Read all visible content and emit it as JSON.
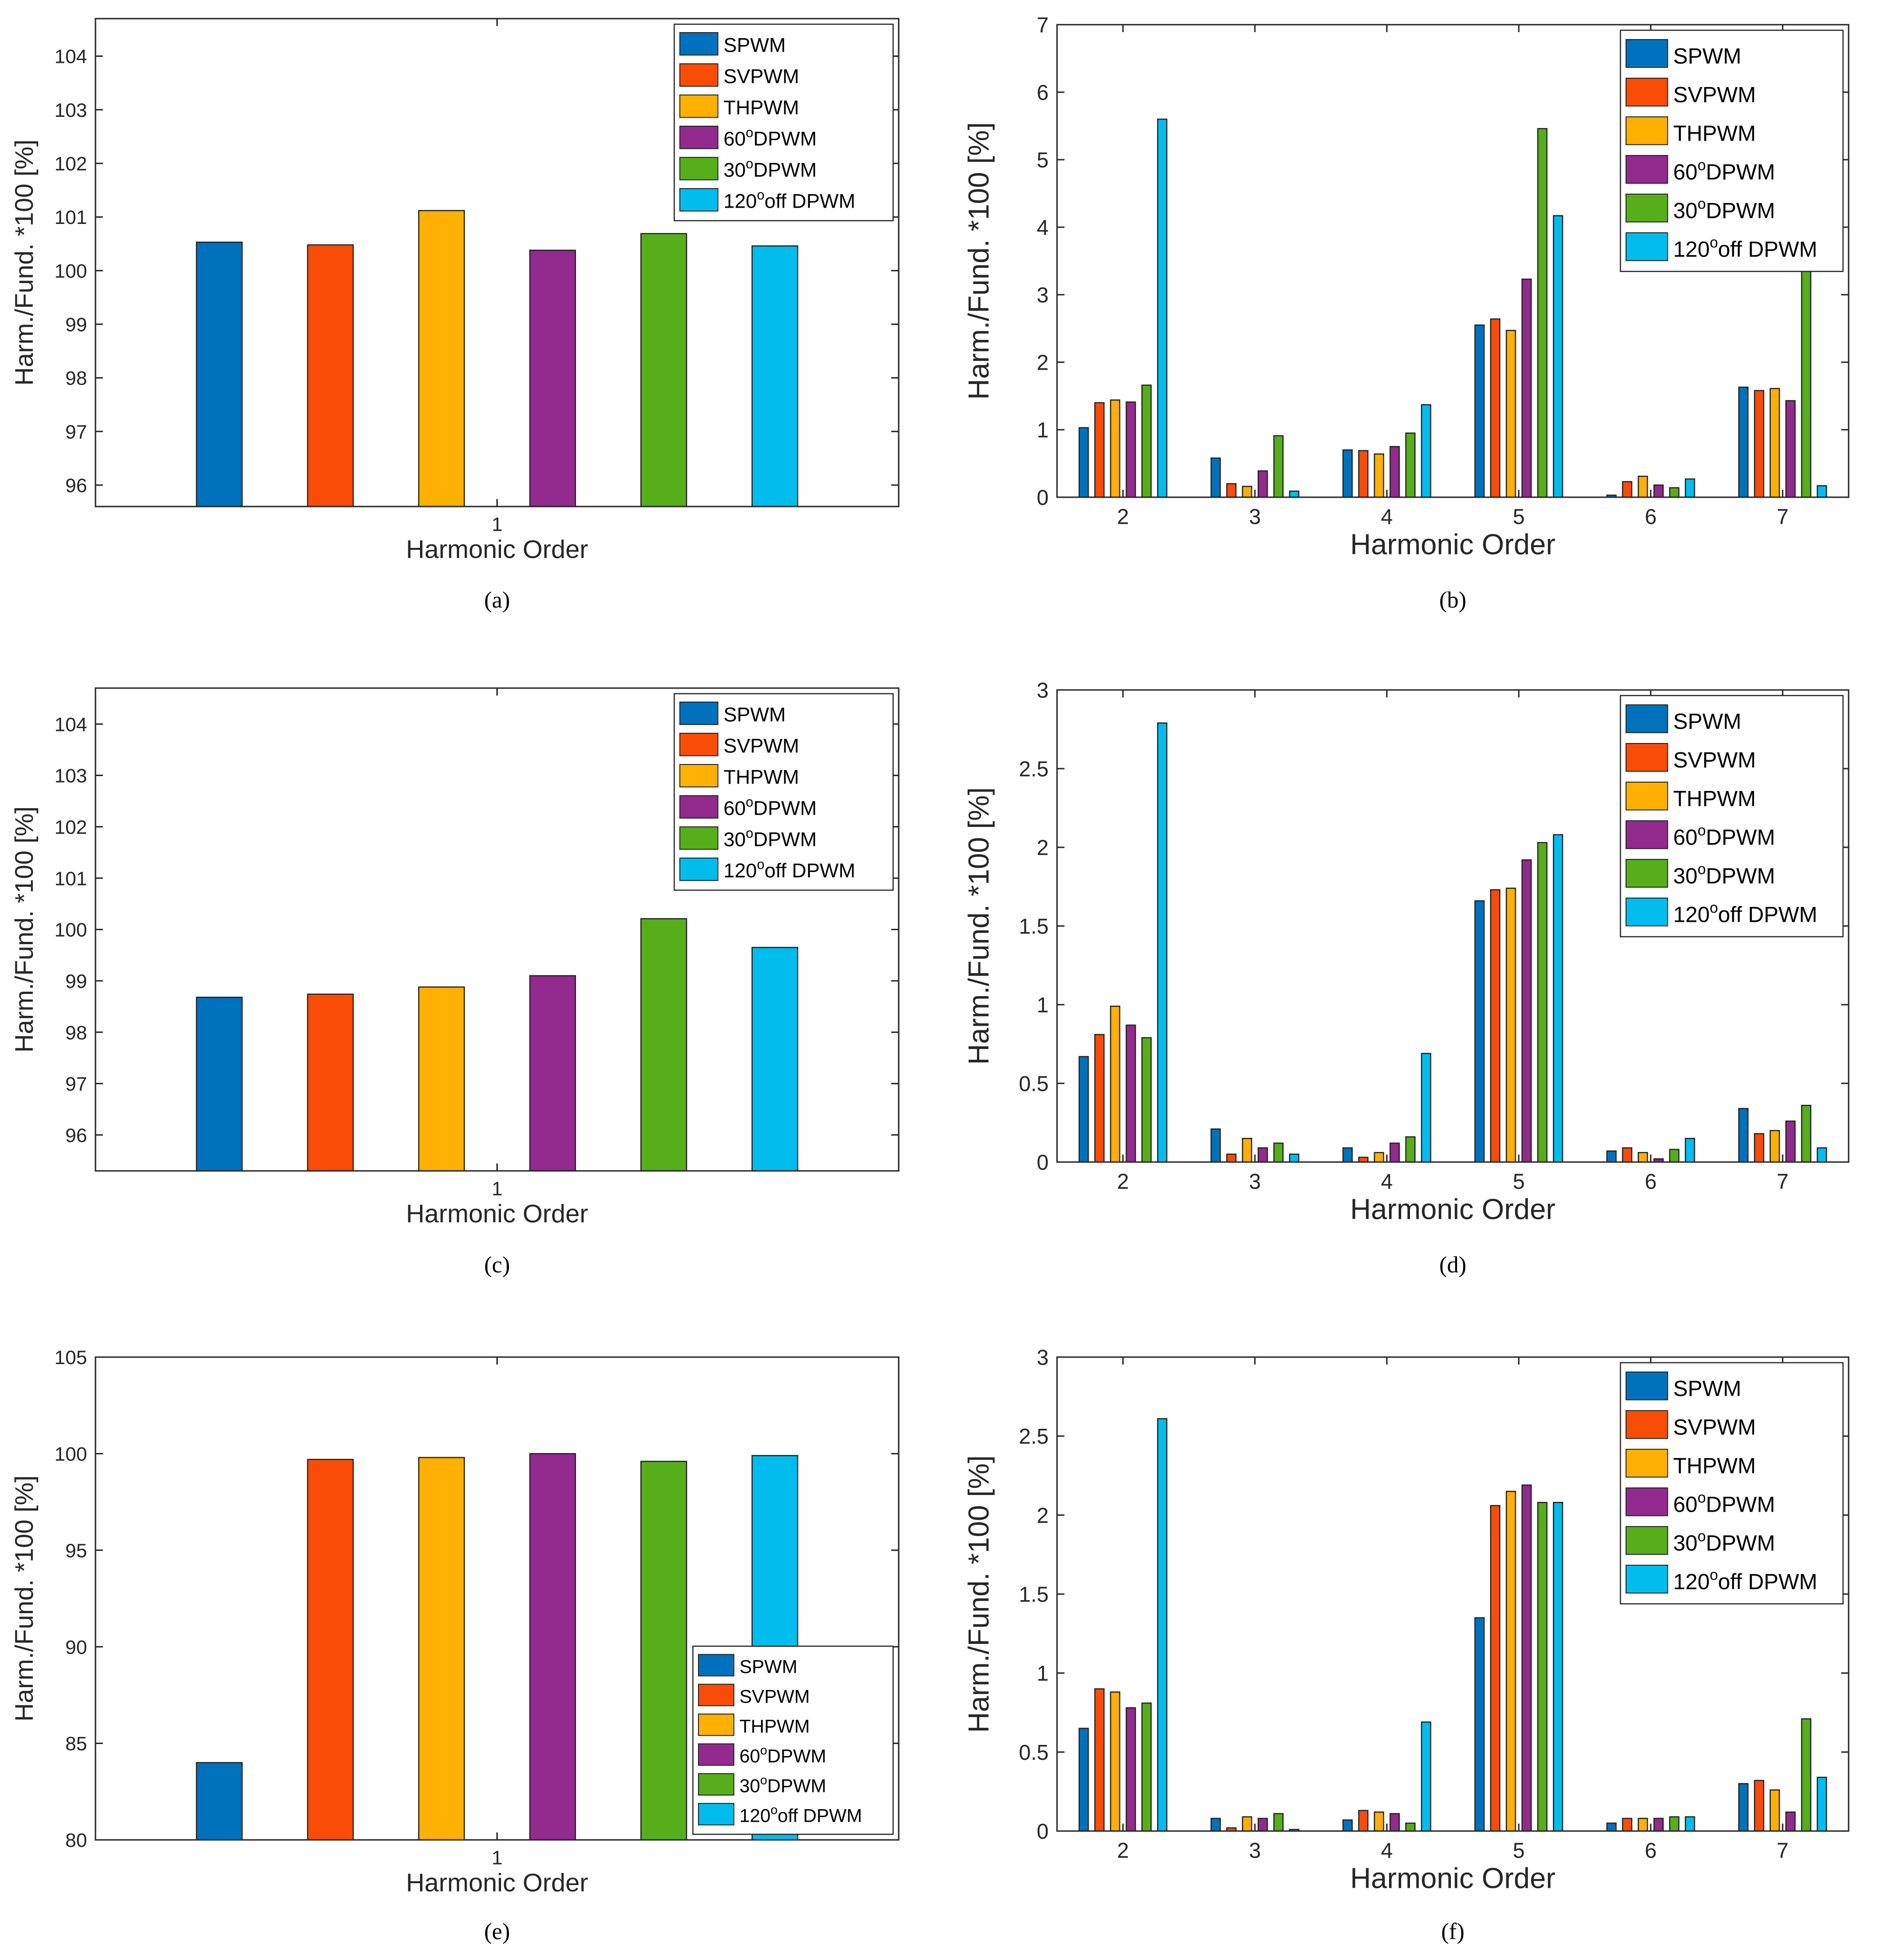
{
  "series_names": [
    "SPWM",
    "SVPWM",
    "THPWM",
    "60°DPWM",
    "30°DPWM",
    "120°off DPWM"
  ],
  "legend": [
    {
      "pre": "SPWM",
      "sup": "",
      "post": ""
    },
    {
      "pre": "SVPWM",
      "sup": "",
      "post": ""
    },
    {
      "pre": "THPWM",
      "sup": "",
      "post": ""
    },
    {
      "pre": "60",
      "sup": "o",
      "post": "DPWM"
    },
    {
      "pre": "30",
      "sup": "o",
      "post": "DPWM"
    },
    {
      "pre": "120",
      "sup": "o",
      "post": "off DPWM"
    }
  ],
  "colors": [
    "#0072BD",
    "#F94D07",
    "#FFB000",
    "#932A8E",
    "#56AE1A",
    "#00BDEE"
  ],
  "chart_data": [
    {
      "id": "a",
      "type": "bar",
      "caption": "(a)",
      "xlabel": "Harmonic Order",
      "ylabel": "Harm./Fund. *100 [%]",
      "categories": [
        "1"
      ],
      "ylim": [
        95.6,
        104.7
      ],
      "yticks": [
        96,
        97,
        98,
        99,
        100,
        101,
        102,
        103,
        104
      ],
      "legend_position": "top-right",
      "series": [
        {
          "name": "SPWM",
          "values": [
            100.53
          ]
        },
        {
          "name": "SVPWM",
          "values": [
            100.48
          ]
        },
        {
          "name": "THPWM",
          "values": [
            101.12
          ]
        },
        {
          "name": "60°DPWM",
          "values": [
            100.38
          ]
        },
        {
          "name": "30°DPWM",
          "values": [
            100.69
          ]
        },
        {
          "name": "120°off DPWM",
          "values": [
            100.46
          ]
        }
      ]
    },
    {
      "id": "b",
      "type": "bar",
      "caption": "(b)",
      "xlabel": "Harmonic Order",
      "ylabel": "Harm./Fund. *100 [%]",
      "categories": [
        "2",
        "3",
        "4",
        "5",
        "6",
        "7"
      ],
      "ylim": [
        0,
        7
      ],
      "yticks": [
        0,
        1,
        2,
        3,
        4,
        5,
        6,
        7
      ],
      "legend_position": "top-right",
      "series": [
        {
          "name": "SPWM",
          "values": [
            1.03,
            0.58,
            0.7,
            2.55,
            0.03,
            1.63
          ]
        },
        {
          "name": "SVPWM",
          "values": [
            1.4,
            0.2,
            0.69,
            2.64,
            0.23,
            1.58
          ]
        },
        {
          "name": "THPWM",
          "values": [
            1.44,
            0.16,
            0.64,
            2.47,
            0.31,
            1.61
          ]
        },
        {
          "name": "60°DPWM",
          "values": [
            1.41,
            0.39,
            0.75,
            3.23,
            0.18,
            1.43
          ]
        },
        {
          "name": "30°DPWM",
          "values": [
            1.66,
            0.91,
            0.95,
            5.46,
            0.14,
            3.43
          ]
        },
        {
          "name": "120°off DPWM",
          "values": [
            5.6,
            0.09,
            1.37,
            4.17,
            0.27,
            0.17
          ]
        }
      ]
    },
    {
      "id": "c",
      "type": "bar",
      "caption": "(c)",
      "xlabel": "Harmonic Order",
      "ylabel": "Harm./Fund. *100 [%]",
      "categories": [
        "1"
      ],
      "ylim": [
        95.3,
        104.7
      ],
      "yticks": [
        96,
        97,
        98,
        99,
        100,
        101,
        102,
        103,
        104
      ],
      "legend_position": "top-right",
      "series": [
        {
          "name": "SPWM",
          "values": [
            98.68
          ]
        },
        {
          "name": "SVPWM",
          "values": [
            98.74
          ]
        },
        {
          "name": "THPWM",
          "values": [
            98.88
          ]
        },
        {
          "name": "60°DPWM",
          "values": [
            99.1
          ]
        },
        {
          "name": "30°DPWM",
          "values": [
            100.21
          ]
        },
        {
          "name": "120°off DPWM",
          "values": [
            99.65
          ]
        }
      ]
    },
    {
      "id": "d",
      "type": "bar",
      "caption": "(d)",
      "xlabel": "Harmonic Order",
      "ylabel": "Harm./Fund. *100 [%]",
      "categories": [
        "2",
        "3",
        "4",
        "5",
        "6",
        "7"
      ],
      "ylim": [
        0,
        3
      ],
      "yticks": [
        0,
        0.5,
        1,
        1.5,
        2,
        2.5,
        3
      ],
      "legend_position": "top-right",
      "series": [
        {
          "name": "SPWM",
          "values": [
            0.67,
            0.21,
            0.09,
            1.66,
            0.07,
            0.34
          ]
        },
        {
          "name": "SVPWM",
          "values": [
            0.81,
            0.05,
            0.03,
            1.73,
            0.09,
            0.18
          ]
        },
        {
          "name": "THPWM",
          "values": [
            0.99,
            0.15,
            0.06,
            1.74,
            0.06,
            0.2
          ]
        },
        {
          "name": "60°DPWM",
          "values": [
            0.87,
            0.09,
            0.12,
            1.92,
            0.02,
            0.26
          ]
        },
        {
          "name": "30°DPWM",
          "values": [
            0.79,
            0.12,
            0.16,
            2.03,
            0.08,
            0.36
          ]
        },
        {
          "name": "120°off DPWM",
          "values": [
            2.79,
            0.05,
            0.69,
            2.08,
            0.15,
            0.09
          ]
        }
      ]
    },
    {
      "id": "e",
      "type": "bar",
      "caption": "(e)",
      "xlabel": "Harmonic Order",
      "ylabel": "Harm./Fund. *100 [%]",
      "categories": [
        "1"
      ],
      "ylim": [
        80,
        105
      ],
      "yticks": [
        80,
        85,
        90,
        95,
        100,
        105
      ],
      "legend_position": "bottom-right",
      "series": [
        {
          "name": "SPWM",
          "values": [
            84.0
          ]
        },
        {
          "name": "SVPWM",
          "values": [
            99.7
          ]
        },
        {
          "name": "THPWM",
          "values": [
            99.8
          ]
        },
        {
          "name": "60°DPWM",
          "values": [
            100.0
          ]
        },
        {
          "name": "30°DPWM",
          "values": [
            99.6
          ]
        },
        {
          "name": "120°off DPWM",
          "values": [
            99.9
          ]
        }
      ]
    },
    {
      "id": "f",
      "type": "bar",
      "caption": "(f)",
      "xlabel": "Harmonic Order",
      "ylabel": "Harm./Fund. *100 [%]",
      "categories": [
        "2",
        "3",
        "4",
        "5",
        "6",
        "7"
      ],
      "ylim": [
        0,
        3
      ],
      "yticks": [
        0,
        0.5,
        1,
        1.5,
        2,
        2.5,
        3
      ],
      "legend_position": "top-right",
      "series": [
        {
          "name": "SPWM",
          "values": [
            0.65,
            0.08,
            0.07,
            1.35,
            0.05,
            0.3
          ]
        },
        {
          "name": "SVPWM",
          "values": [
            0.9,
            0.02,
            0.13,
            2.06,
            0.08,
            0.32
          ]
        },
        {
          "name": "THPWM",
          "values": [
            0.88,
            0.09,
            0.12,
            2.15,
            0.08,
            0.26
          ]
        },
        {
          "name": "60°DPWM",
          "values": [
            0.78,
            0.08,
            0.11,
            2.19,
            0.08,
            0.12
          ]
        },
        {
          "name": "30°DPWM",
          "values": [
            0.81,
            0.11,
            0.05,
            2.08,
            0.09,
            0.71
          ]
        },
        {
          "name": "120°off DPWM",
          "values": [
            2.61,
            0.01,
            0.69,
            2.08,
            0.09,
            0.34
          ]
        }
      ]
    }
  ]
}
